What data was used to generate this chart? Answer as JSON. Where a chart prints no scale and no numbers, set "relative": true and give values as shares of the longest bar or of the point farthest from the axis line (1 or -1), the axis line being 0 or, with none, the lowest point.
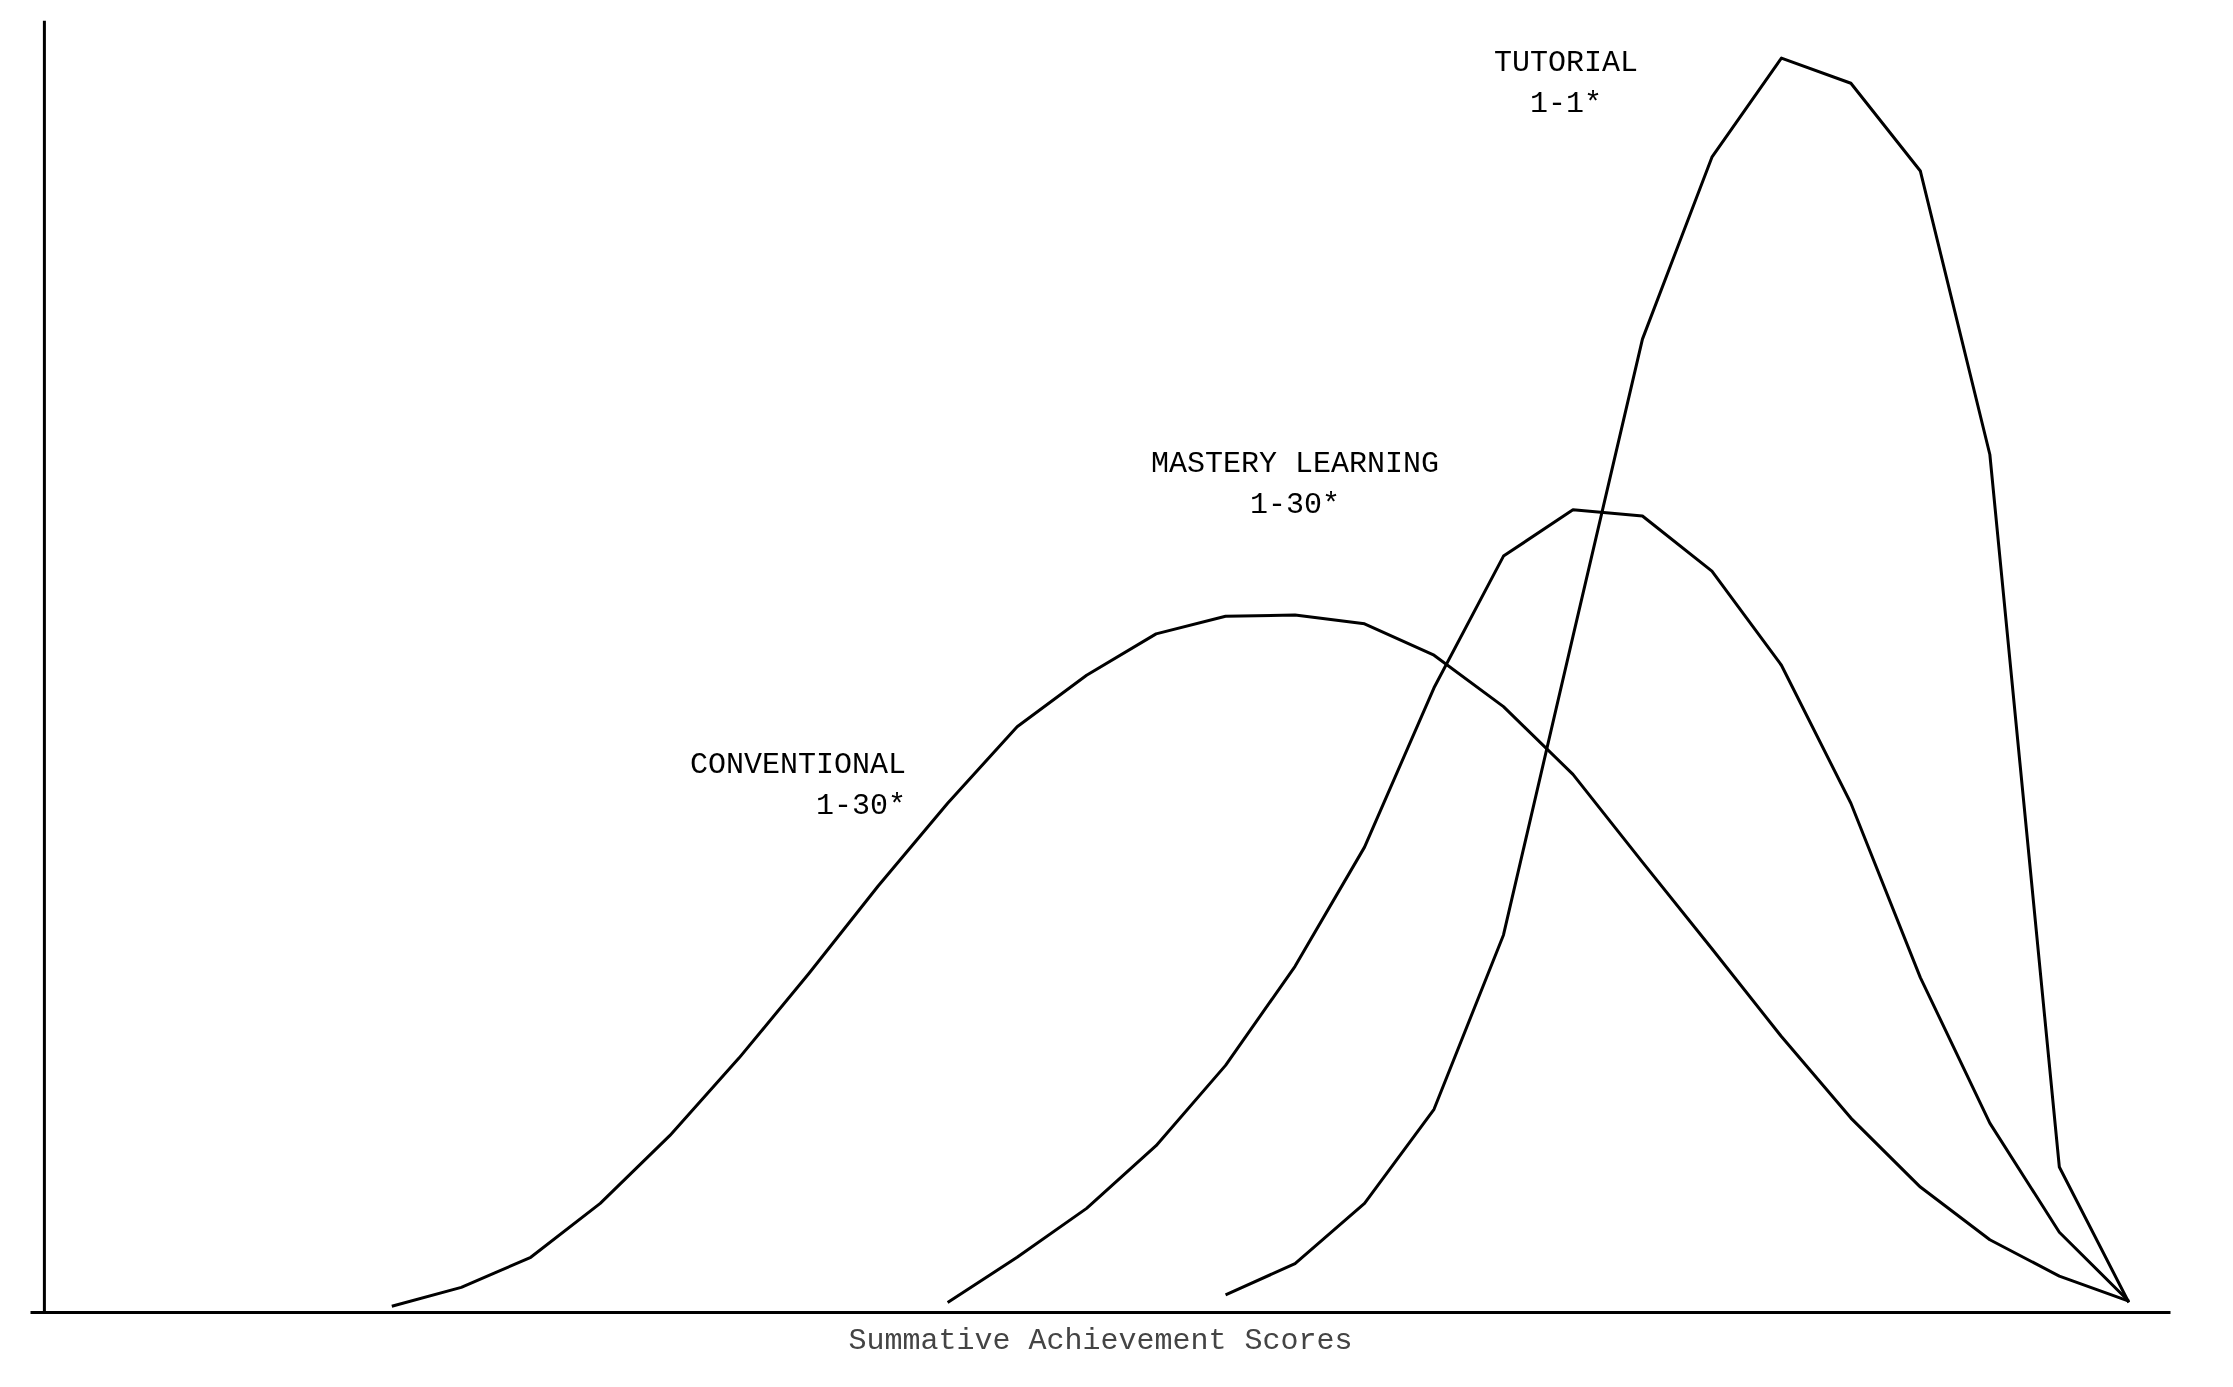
{
  "chart_data": {
    "type": "line",
    "relative": true,
    "xlabel": "Summative Achievement Scores",
    "categories": [
      null,
      null,
      null,
      null,
      null,
      null,
      null,
      null,
      null,
      null,
      null,
      null,
      null,
      null,
      null,
      null,
      null,
      null,
      null,
      null,
      null,
      null,
      null,
      null,
      null,
      null
    ],
    "grid": false,
    "marker": "none",
    "line_style": "solid",
    "series": [
      {
        "name": "CONVENTIONAL\n1-30*",
        "color": "#000000",
        "values": [
          0.005,
          0.02,
          0.044,
          0.087,
          0.141,
          0.203,
          0.27,
          0.34,
          0.406,
          0.467,
          0.508,
          0.541,
          0.555,
          0.556,
          0.549,
          0.524,
          0.483,
          0.429,
          0.359,
          0.29,
          0.22,
          0.155,
          0.1,
          0.058,
          0.029,
          0.009
        ]
      },
      {
        "name": "MASTERY LEARNING\n1-30*",
        "color": "#000000",
        "values": [
          null,
          null,
          null,
          null,
          null,
          null,
          null,
          null,
          0.008,
          0.044,
          0.083,
          0.133,
          0.197,
          0.276,
          0.371,
          0.498,
          0.603,
          0.64,
          0.635,
          0.591,
          0.516,
          0.406,
          0.267,
          0.151,
          0.064,
          0.009
        ]
      },
      {
        "name": "TUTORIAL\n1-1*",
        "color": "#000000",
        "values": [
          null,
          null,
          null,
          null,
          null,
          null,
          null,
          null,
          null,
          null,
          null,
          null,
          0.014,
          0.039,
          0.087,
          0.162,
          0.301,
          0.539,
          0.776,
          0.921,
          1.0,
          0.98,
          0.91,
          0.684,
          0.116,
          0.008
        ]
      }
    ]
  }
}
